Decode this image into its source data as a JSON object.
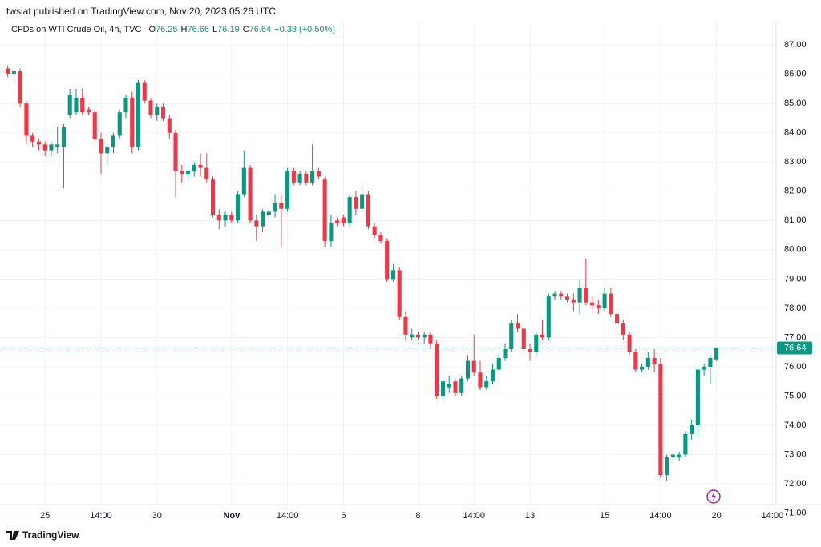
{
  "header": {
    "published": "twsiat published on TradingView.com, Nov 20, 2023 05:26 UTC",
    "symbol": "CFDs on WTI Crude Oil, 4h, TVC",
    "ohlc": [
      {
        "label": "O",
        "value": "76.25"
      },
      {
        "label": "H",
        "value": "76.66"
      },
      {
        "label": "L",
        "value": "76.19"
      },
      {
        "label": "C",
        "value": "76.64"
      }
    ],
    "change": "+0.38 (+0.50%)"
  },
  "footer": {
    "brand": "TradingView"
  },
  "chart_data": {
    "type": "candlestick",
    "up_color": "#089981",
    "down_color": "#f23645",
    "grid": true,
    "last_price": {
      "value": 76.64,
      "label": "76.64"
    },
    "xlim": [
      -0.6,
      123.2
    ],
    "xticks": [
      {
        "value": 6,
        "label": "25"
      },
      {
        "value": 15,
        "label": "14:00"
      },
      {
        "value": 24,
        "label": "30"
      },
      {
        "value": 36,
        "label": "Nov"
      },
      {
        "value": 45,
        "label": "14:00"
      },
      {
        "value": 54,
        "label": "6"
      },
      {
        "value": 66,
        "label": "8"
      },
      {
        "value": 75,
        "label": "14:00"
      },
      {
        "value": 84,
        "label": "13"
      },
      {
        "value": 96,
        "label": "15"
      },
      {
        "value": 105,
        "label": "14:00"
      },
      {
        "value": 114,
        "label": "20"
      },
      {
        "value": 123,
        "label": "14:00"
      }
    ],
    "ylim": [
      71.37,
      87.17
    ],
    "yticks": [
      {
        "value": 71,
        "label": "71.00"
      },
      {
        "value": 72,
        "label": "72.00"
      },
      {
        "value": 73,
        "label": "73.00"
      },
      {
        "value": 74,
        "label": "74.00"
      },
      {
        "value": 75,
        "label": "75.00"
      },
      {
        "value": 76,
        "label": "76.00"
      },
      {
        "value": 77,
        "label": "77.00"
      },
      {
        "value": 78,
        "label": "78.00"
      },
      {
        "value": 79,
        "label": "79.00"
      },
      {
        "value": 80,
        "label": "80.00"
      },
      {
        "value": 81,
        "label": "81.00"
      },
      {
        "value": 82,
        "label": "82.00"
      },
      {
        "value": 83,
        "label": "83.00"
      },
      {
        "value": 84,
        "label": "84.00"
      },
      {
        "value": 85,
        "label": "85.00"
      },
      {
        "value": 86,
        "label": "86.00"
      },
      {
        "value": 87,
        "label": "87.00"
      }
    ],
    "open": [
      86.2,
      86.0,
      86.1,
      85.0,
      83.9,
      83.7,
      83.6,
      83.4,
      83.5,
      83.5,
      84.6,
      84.7,
      85.2,
      84.8,
      84.7,
      83.8,
      83.3,
      83.5,
      83.9,
      84.7,
      85.2,
      83.5,
      85.7,
      85.1,
      84.6,
      84.9,
      84.5,
      84.0,
      82.7,
      82.6,
      82.7,
      82.9,
      82.8,
      82.4,
      81.2,
      81.0,
      81.2,
      81.0,
      81.9,
      82.8,
      81.0,
      80.8,
      81.2,
      81.3,
      81.6,
      81.4,
      82.7,
      82.3,
      82.6,
      82.3,
      82.7,
      82.4,
      80.3,
      81.0,
      81.1,
      80.9,
      81.8,
      81.4,
      81.9,
      80.8,
      80.5,
      80.3,
      79.0,
      79.3,
      77.7,
      77.0,
      77.1,
      77.0,
      77.1,
      76.8,
      75.0,
      75.3,
      75.5,
      75.1,
      75.6,
      76.2,
      75.8,
      75.3,
      75.5,
      75.9,
      76.3,
      76.6,
      77.5,
      77.3,
      76.6,
      76.5,
      77.1,
      77.0,
      78.4,
      78.5,
      78.4,
      78.3,
      78.2,
      78.7,
      78.2,
      78.1,
      78.0,
      78.5,
      77.8,
      77.5,
      77.1,
      76.5,
      75.9,
      76.0,
      76.3,
      76.1,
      72.3,
      72.9,
      72.9,
      73.0,
      73.7,
      74.0,
      75.9,
      76.0,
      76.25
    ],
    "high": [
      86.3,
      86.2,
      86.2,
      85.1,
      84.0,
      83.8,
      83.7,
      83.7,
      84.2,
      84.3,
      85.5,
      85.5,
      85.5,
      84.9,
      84.8,
      84.0,
      83.6,
      84.0,
      84.8,
      85.3,
      85.4,
      85.8,
      85.8,
      85.2,
      85.0,
      85.0,
      84.6,
      84.1,
      82.9,
      82.8,
      83.0,
      83.3,
      83.3,
      82.5,
      81.4,
      81.3,
      81.3,
      82.0,
      83.4,
      82.9,
      81.2,
      81.4,
      81.4,
      81.9,
      81.9,
      82.8,
      82.8,
      82.7,
      82.7,
      83.6,
      82.8,
      82.5,
      81.2,
      81.1,
      81.2,
      81.9,
      82.0,
      82.2,
      82.0,
      80.9,
      80.6,
      80.4,
      79.5,
      79.4,
      77.9,
      77.3,
      77.2,
      77.2,
      77.2,
      76.9,
      75.6,
      75.7,
      75.6,
      75.7,
      76.4,
      77.1,
      76.2,
      75.7,
      76.1,
      76.4,
      76.8,
      77.6,
      77.8,
      77.4,
      76.8,
      77.2,
      77.6,
      78.5,
      78.6,
      78.6,
      78.5,
      78.5,
      79.0,
      79.7,
      78.4,
      78.3,
      78.7,
      78.7,
      77.9,
      77.6,
      77.2,
      76.6,
      76.1,
      76.5,
      76.6,
      76.3,
      73.0,
      73.1,
      73.1,
      73.8,
      74.2,
      76.0,
      76.1,
      76.4,
      76.66
    ],
    "low": [
      85.9,
      85.8,
      84.9,
      83.6,
      83.5,
      83.4,
      83.2,
      83.2,
      83.3,
      82.1,
      84.5,
      84.6,
      84.6,
      84.6,
      83.7,
      82.6,
      82.9,
      83.3,
      83.8,
      84.5,
      83.3,
      83.4,
      85.0,
      84.5,
      84.4,
      84.4,
      83.8,
      81.8,
      82.3,
      82.4,
      82.5,
      82.5,
      82.3,
      81.1,
      80.7,
      80.8,
      80.9,
      80.9,
      81.8,
      80.9,
      80.3,
      80.6,
      81.0,
      81.1,
      80.1,
      81.3,
      82.2,
      82.2,
      82.2,
      82.2,
      82.4,
      80.1,
      80.1,
      80.8,
      80.8,
      80.8,
      81.2,
      81.3,
      80.7,
      80.4,
      80.2,
      78.9,
      78.9,
      77.6,
      76.9,
      76.9,
      76.9,
      76.8,
      76.6,
      74.9,
      74.9,
      75.1,
      75.0,
      75.0,
      75.5,
      75.7,
      75.2,
      75.2,
      75.4,
      75.8,
      76.2,
      76.5,
      77.2,
      76.5,
      76.2,
      76.4,
      76.9,
      76.9,
      78.3,
      78.3,
      78.2,
      77.9,
      77.8,
      78.1,
      77.9,
      77.8,
      77.9,
      77.7,
      77.3,
      76.9,
      76.4,
      75.8,
      75.8,
      75.9,
      75.8,
      72.2,
      72.1,
      72.7,
      72.8,
      72.9,
      73.5,
      73.6,
      75.7,
      75.4,
      76.19
    ],
    "close": [
      86.0,
      86.1,
      85.0,
      83.9,
      83.7,
      83.6,
      83.4,
      83.6,
      83.6,
      84.2,
      85.3,
      85.2,
      84.7,
      84.7,
      83.8,
      83.3,
      83.5,
      83.9,
      84.7,
      85.2,
      83.5,
      85.7,
      85.1,
      84.6,
      84.9,
      84.5,
      84.0,
      82.7,
      82.6,
      82.7,
      82.9,
      82.8,
      82.4,
      81.2,
      81.0,
      81.2,
      81.0,
      81.9,
      82.8,
      81.0,
      80.8,
      81.3,
      81.3,
      81.6,
      81.4,
      82.7,
      82.3,
      82.6,
      82.3,
      82.7,
      82.5,
      80.3,
      80.9,
      80.9,
      80.9,
      81.8,
      81.4,
      81.9,
      80.8,
      80.5,
      80.3,
      79.0,
      79.3,
      77.7,
      77.1,
      77.1,
      77.0,
      77.1,
      76.8,
      75.0,
      75.5,
      75.4,
      75.1,
      75.6,
      76.2,
      75.8,
      75.3,
      75.5,
      75.9,
      76.3,
      76.6,
      77.5,
      77.3,
      76.6,
      76.5,
      77.1,
      77.0,
      78.4,
      78.5,
      78.4,
      78.3,
      78.2,
      78.7,
      78.2,
      78.1,
      78.0,
      78.5,
      77.8,
      77.5,
      77.1,
      76.5,
      75.9,
      76.0,
      76.3,
      76.1,
      72.3,
      72.9,
      73.0,
      73.0,
      73.7,
      74.0,
      75.9,
      76.0,
      76.3,
      76.64
    ]
  }
}
